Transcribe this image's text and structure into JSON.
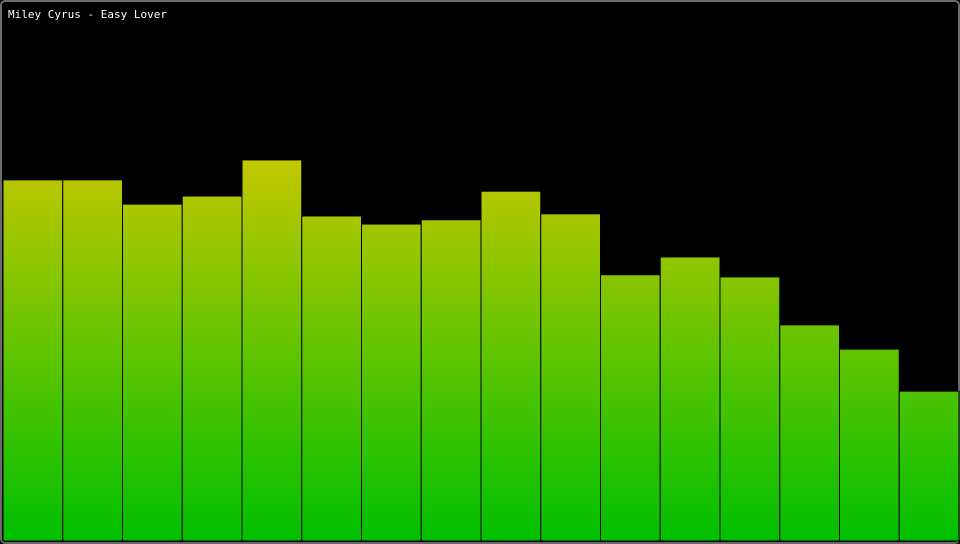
{
  "chart_data": {
    "type": "bar",
    "title": "Miley Cyrus - Easy Lover",
    "categories": [
      null,
      null,
      null,
      null,
      null,
      null,
      null,
      null,
      null,
      null,
      null,
      null,
      null,
      null,
      null,
      null
    ],
    "values": [
      67,
      67,
      62.5,
      64,
      70.7,
      60.3,
      58.8,
      59.6,
      64.9,
      60.7,
      49.4,
      52.7,
      49,
      40.1,
      35.6,
      27.8
    ],
    "ylim": [
      0,
      100
    ],
    "gradient": [
      "#c8c800",
      "#00c000"
    ]
  }
}
